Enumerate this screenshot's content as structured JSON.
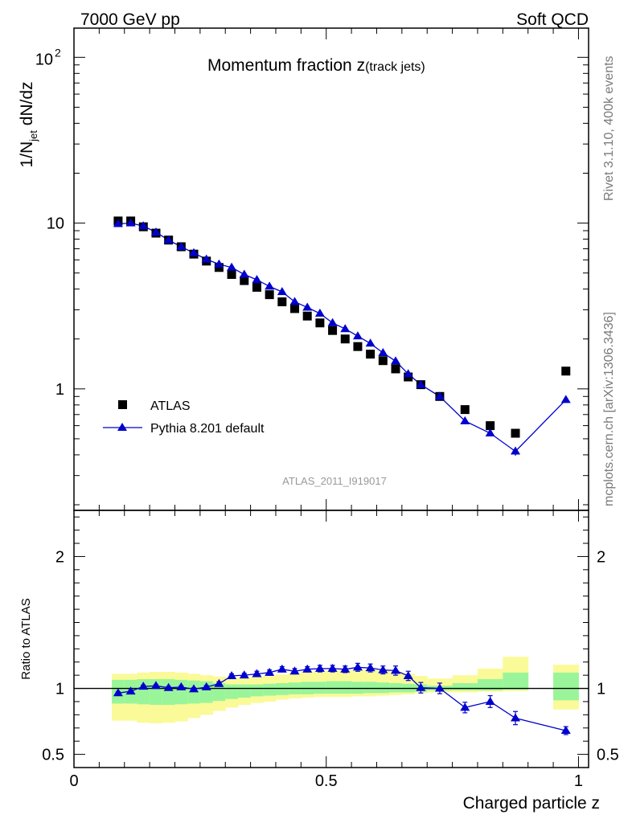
{
  "header": {
    "left": "7000 GeV pp",
    "right": "Soft QCD"
  },
  "side_text": {
    "rivet": "Rivet 3.1.10,  400k events",
    "source": "mcplots.cern.ch [arXiv:1306.3436]"
  },
  "chart_data": [
    {
      "type": "scatter",
      "title_main": "Momentum fraction z",
      "title_sub": "(track jets)",
      "ylabel": "1/N",
      "ylabel_sub": "jet",
      "ylabel_tail": " dN/dz",
      "yscale": "log",
      "ylim": [
        0.185,
        150
      ],
      "xlim": [
        0,
        1.02
      ],
      "analysis_tag": "ATLAS_2011_I919017",
      "y_tick_labels": {
        "1": "1",
        "10": "10",
        "100_base": "10",
        "100_exp": "2"
      },
      "legend_position": "lower-left",
      "legend": [
        "ATLAS",
        "Pythia 8.201 default"
      ],
      "series": [
        {
          "name": "ATLAS",
          "color": "#000000",
          "marker": "square",
          "x": [
            0.0875,
            0.1125,
            0.1375,
            0.1625,
            0.1875,
            0.2125,
            0.2375,
            0.2625,
            0.2875,
            0.3125,
            0.3375,
            0.3625,
            0.3875,
            0.4125,
            0.4375,
            0.4625,
            0.4875,
            0.5125,
            0.5375,
            0.5625,
            0.5875,
            0.6125,
            0.6375,
            0.6625,
            0.6875,
            0.725,
            0.775,
            0.825,
            0.875,
            0.975
          ],
          "y": [
            10.3,
            10.3,
            9.5,
            8.7,
            7.9,
            7.2,
            6.5,
            5.9,
            5.4,
            4.9,
            4.5,
            4.1,
            3.7,
            3.35,
            3.05,
            2.75,
            2.5,
            2.25,
            2.0,
            1.8,
            1.62,
            1.48,
            1.32,
            1.18,
            1.06,
            0.9,
            0.75,
            0.6,
            0.54,
            1.28
          ]
        },
        {
          "name": "Pythia 8.201 default",
          "color": "#0000cc",
          "marker": "triangle",
          "x": [
            0.0875,
            0.1125,
            0.1375,
            0.1625,
            0.1875,
            0.2125,
            0.2375,
            0.2625,
            0.2875,
            0.3125,
            0.3375,
            0.3625,
            0.3875,
            0.4125,
            0.4375,
            0.4625,
            0.4875,
            0.5125,
            0.5375,
            0.5625,
            0.5875,
            0.6125,
            0.6375,
            0.6625,
            0.6875,
            0.725,
            0.775,
            0.825,
            0.875,
            0.975
          ],
          "y": [
            9.9,
            10.0,
            9.6,
            8.8,
            7.9,
            7.2,
            6.6,
            6.05,
            5.65,
            5.4,
            4.9,
            4.55,
            4.15,
            3.85,
            3.35,
            3.1,
            2.85,
            2.5,
            2.3,
            2.08,
            1.88,
            1.65,
            1.47,
            1.23,
            1.06,
            0.9,
            0.64,
            0.54,
            0.42,
            0.86
          ],
          "err": [
            0.1,
            0.1,
            0.1,
            0.1,
            0.08,
            0.07,
            0.06,
            0.06,
            0.05,
            0.05,
            0.05,
            0.05,
            0.05,
            0.04,
            0.04,
            0.04,
            0.04,
            0.03,
            0.03,
            0.03,
            0.03,
            0.03,
            0.03,
            0.03,
            0.03,
            0.02,
            0.02,
            0.02,
            0.025,
            0.03
          ]
        }
      ]
    },
    {
      "type": "scatter",
      "ylabel": "Ratio to ATLAS",
      "xlabel": "Charged particle z",
      "xlim": [
        0,
        1.02
      ],
      "ylim": [
        0.4,
        2.35
      ],
      "reference_line": 1,
      "x_tick_labels": [
        "0",
        "0.5",
        "1"
      ],
      "y_tick_labels": [
        "0.5",
        "1",
        "2"
      ],
      "bands": {
        "green_color": "#9af59a",
        "yellow_color": "#fafa98",
        "edges": [
          0.075,
          0.1,
          0.125,
          0.15,
          0.175,
          0.2,
          0.225,
          0.25,
          0.275,
          0.3,
          0.325,
          0.35,
          0.375,
          0.4,
          0.425,
          0.45,
          0.475,
          0.5,
          0.525,
          0.55,
          0.575,
          0.6,
          0.625,
          0.65,
          0.675,
          0.7,
          0.75,
          0.8,
          0.85,
          0.9,
          0.95,
          1.0
        ],
        "gaps": [
          29
        ],
        "green_low": [
          0.885,
          0.885,
          0.88,
          0.875,
          0.875,
          0.88,
          0.885,
          0.89,
          0.905,
          0.92,
          0.93,
          0.94,
          0.945,
          0.95,
          0.955,
          0.955,
          0.96,
          0.96,
          0.96,
          0.96,
          0.965,
          0.965,
          0.97,
          0.97,
          0.975,
          0.985,
          0.985,
          0.985,
          0.99,
          0.99,
          0.91
        ],
        "green_high": [
          1.065,
          1.065,
          1.07,
          1.07,
          1.07,
          1.065,
          1.06,
          1.055,
          1.04,
          1.03,
          1.03,
          1.03,
          1.035,
          1.04,
          1.045,
          1.05,
          1.05,
          1.055,
          1.055,
          1.05,
          1.05,
          1.045,
          1.04,
          1.035,
          1.03,
          1.02,
          1.04,
          1.07,
          1.12,
          1.19,
          1.12
        ],
        "yellow_low": [
          0.755,
          0.755,
          0.74,
          0.735,
          0.74,
          0.75,
          0.775,
          0.8,
          0.83,
          0.855,
          0.875,
          0.89,
          0.9,
          0.915,
          0.925,
          0.93,
          0.935,
          0.935,
          0.935,
          0.94,
          0.94,
          0.945,
          0.95,
          0.955,
          0.965,
          0.97,
          0.97,
          0.975,
          0.98,
          0.98,
          0.84
        ],
        "yellow_high": [
          1.11,
          1.11,
          1.12,
          1.125,
          1.125,
          1.12,
          1.11,
          1.1,
          1.09,
          1.08,
          1.08,
          1.09,
          1.095,
          1.105,
          1.115,
          1.125,
          1.13,
          1.135,
          1.14,
          1.14,
          1.14,
          1.135,
          1.125,
          1.11,
          1.095,
          1.075,
          1.1,
          1.15,
          1.24,
          1.38,
          1.18
        ]
      },
      "series": [
        {
          "name": "Pythia 8.201 default",
          "color": "#0000cc",
          "marker": "triangle",
          "x": [
            0.0875,
            0.1125,
            0.1375,
            0.1625,
            0.1875,
            0.2125,
            0.2375,
            0.2625,
            0.2875,
            0.3125,
            0.3375,
            0.3625,
            0.3875,
            0.4125,
            0.4375,
            0.4625,
            0.4875,
            0.5125,
            0.5375,
            0.5625,
            0.5875,
            0.6125,
            0.6375,
            0.6625,
            0.6875,
            0.725,
            0.775,
            0.825,
            0.875,
            0.975
          ],
          "y": [
            0.965,
            0.978,
            1.015,
            1.02,
            1.005,
            1.01,
            0.995,
            1.01,
            1.035,
            1.095,
            1.1,
            1.11,
            1.12,
            1.145,
            1.13,
            1.145,
            1.15,
            1.15,
            1.145,
            1.16,
            1.155,
            1.14,
            1.135,
            1.095,
            1.005,
            1.0,
            0.855,
            0.9,
            0.775,
            0.68
          ],
          "err": [
            0.01,
            0.01,
            0.01,
            0.01,
            0.01,
            0.01,
            0.01,
            0.012,
            0.015,
            0.015,
            0.015,
            0.02,
            0.02,
            0.02,
            0.02,
            0.02,
            0.025,
            0.025,
            0.025,
            0.03,
            0.03,
            0.03,
            0.035,
            0.035,
            0.04,
            0.04,
            0.04,
            0.045,
            0.05,
            0.03
          ]
        }
      ]
    }
  ]
}
